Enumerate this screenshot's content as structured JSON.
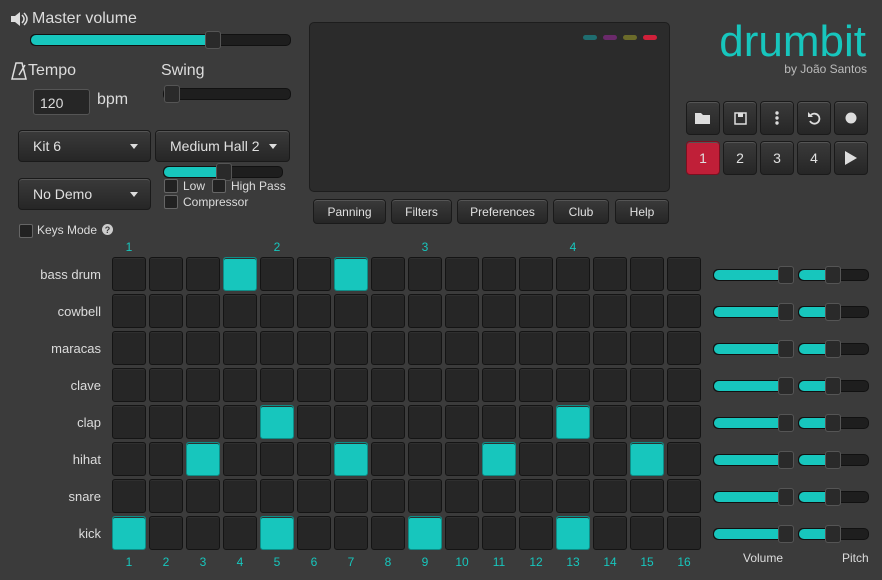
{
  "master_volume": {
    "label": "Master volume"
  },
  "tempo": {
    "label": "Tempo",
    "value": 120,
    "unit": "bpm"
  },
  "swing": {
    "label": "Swing"
  },
  "kit": "Kit 6",
  "reverb": "Medium Hall 2",
  "demo": "No Demo",
  "filters": {
    "low": "Low",
    "high_pass": "High Pass",
    "compressor": "Compressor"
  },
  "keys_mode": "Keys Mode",
  "toolbar": [
    "Panning",
    "Filters",
    "Preferences",
    "Club",
    "Help"
  ],
  "logo": {
    "title": "drumbit",
    "byline": "by João Santos"
  },
  "patterns": [
    1,
    2,
    3,
    4
  ],
  "beat_markers": [
    1,
    2,
    3,
    4
  ],
  "steps": [
    1,
    2,
    3,
    4,
    5,
    6,
    7,
    8,
    9,
    10,
    11,
    12,
    13,
    14,
    15,
    16
  ],
  "tracks": [
    {
      "name": "bass drum",
      "active": [
        4,
        7
      ]
    },
    {
      "name": "cowbell",
      "active": []
    },
    {
      "name": "maracas",
      "active": []
    },
    {
      "name": "clave",
      "active": []
    },
    {
      "name": "clap",
      "active": [
        5,
        13
      ]
    },
    {
      "name": "hihat",
      "active": [
        3,
        7,
        11,
        15
      ]
    },
    {
      "name": "snare",
      "active": []
    },
    {
      "name": "kick",
      "active": [
        1,
        5,
        9,
        13
      ]
    }
  ],
  "mixer": {
    "volume": "Volume",
    "pitch": "Pitch"
  }
}
